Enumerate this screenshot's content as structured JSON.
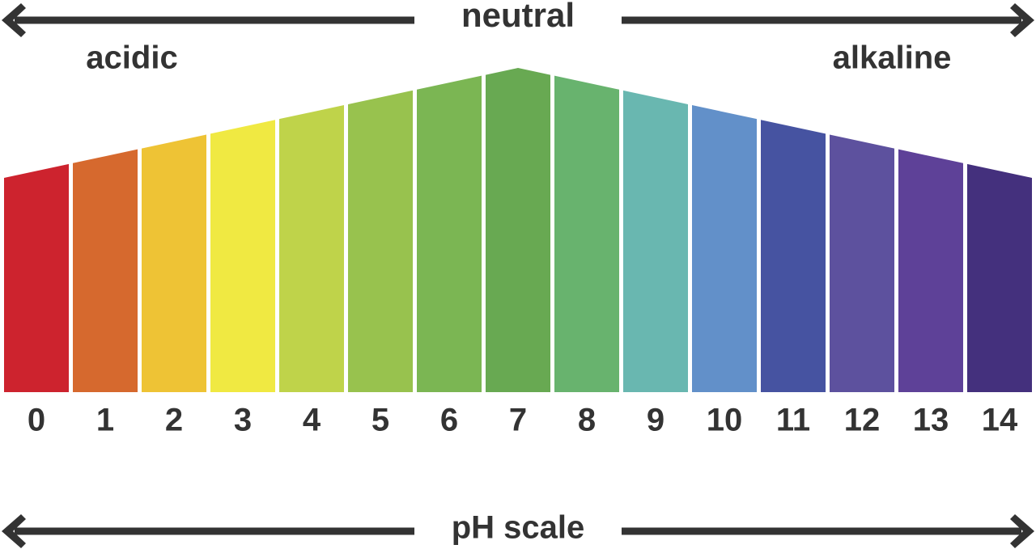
{
  "header": {
    "center": "neutral",
    "left": "acidic",
    "right": "alkaline"
  },
  "segments": [
    {
      "label": "0",
      "color": "#cd232e"
    },
    {
      "label": "1",
      "color": "#d6692e"
    },
    {
      "label": "2",
      "color": "#eec335"
    },
    {
      "label": "3",
      "color": "#f0e942"
    },
    {
      "label": "4",
      "color": "#bfd34a"
    },
    {
      "label": "5",
      "color": "#98c24e"
    },
    {
      "label": "6",
      "color": "#7bb653"
    },
    {
      "label": "7",
      "color": "#68a952"
    },
    {
      "label": "8",
      "color": "#68b36e"
    },
    {
      "label": "9",
      "color": "#69b7b0"
    },
    {
      "label": "10",
      "color": "#6290c9"
    },
    {
      "label": "11",
      "color": "#4653a1"
    },
    {
      "label": "12",
      "color": "#5d519e"
    },
    {
      "label": "13",
      "color": "#5e4198"
    },
    {
      "label": "14",
      "color": "#44307d"
    }
  ],
  "footer": "pH scale"
}
